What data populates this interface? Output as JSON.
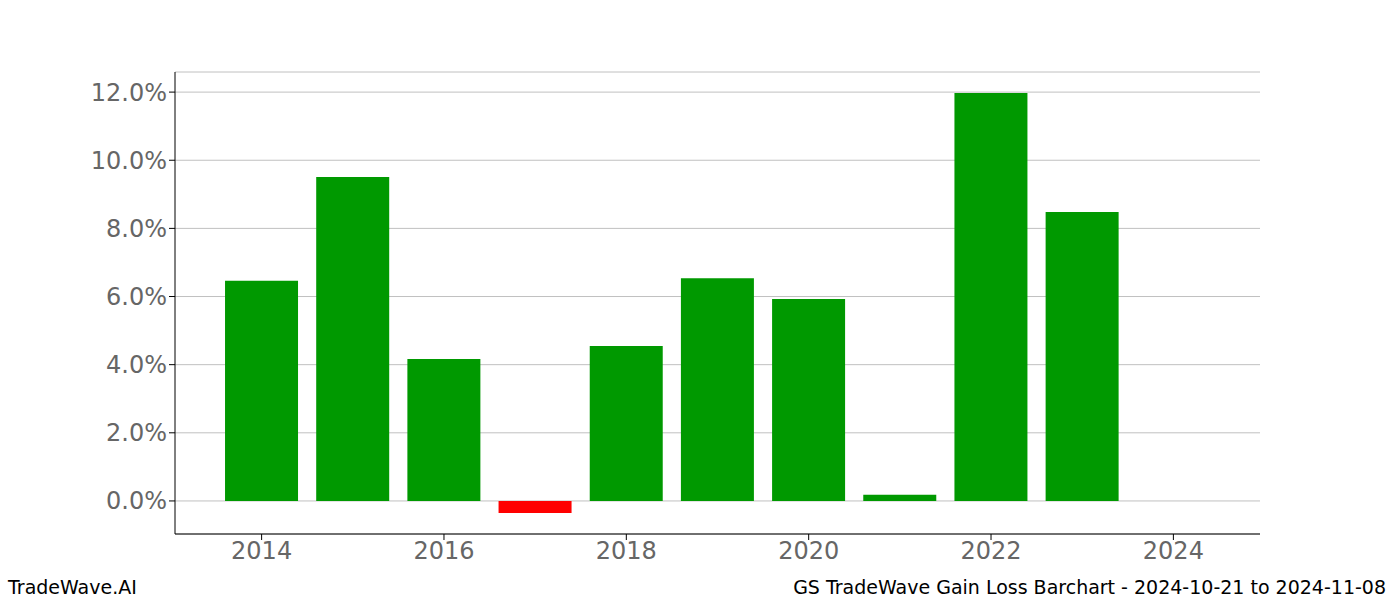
{
  "chart_data": {
    "type": "bar",
    "title": "GS TradeWave Gain Loss Barchart - 2024-10-21 to 2024-11-08",
    "annotations": [
      "TradeWave.AI"
    ],
    "x": [
      2014,
      2015,
      2016,
      2017,
      2018,
      2019,
      2020,
      2021,
      2022,
      2023,
      2024
    ],
    "values": [
      6.46,
      9.51,
      4.17,
      -0.35,
      4.55,
      6.54,
      5.93,
      0.18,
      11.97,
      8.48,
      0
    ],
    "colors": [
      "#009900",
      "#009900",
      "#009900",
      "#ff0000",
      "#009900",
      "#009900",
      "#009900",
      "#009900",
      "#009900",
      "#009900",
      "#009900"
    ],
    "xlim": [
      2013.05,
      2024.95
    ],
    "xticks": [
      2014,
      2016,
      2018,
      2020,
      2022,
      2024
    ],
    "ylim": [
      -0.97,
      12.59
    ],
    "yticks": [
      {
        "value": 0,
        "label": "0.0%"
      },
      {
        "value": 2,
        "label": "2.0%"
      },
      {
        "value": 4,
        "label": "4.0%"
      },
      {
        "value": 6,
        "label": "6.0%"
      },
      {
        "value": 8,
        "label": "8.0%"
      },
      {
        "value": 10,
        "label": "10.0%"
      },
      {
        "value": 12,
        "label": "12.0%"
      }
    ],
    "grid": true
  }
}
